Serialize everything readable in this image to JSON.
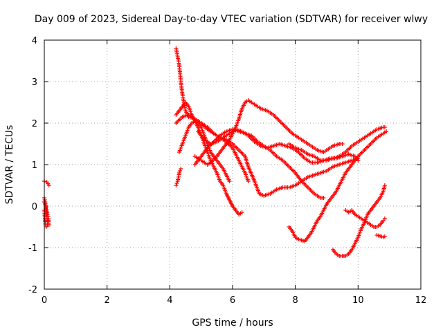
{
  "chart_data": {
    "type": "scatter",
    "title": "Day 009 of 2023, Sidereal Day-to-day VTEC variation (SDTVAR) for receiver wlwy",
    "xlabel": "GPS time / hours",
    "ylabel": "SDTVAR / TECUs",
    "xlim": [
      0,
      12
    ],
    "ylim": [
      -2,
      4
    ],
    "xticks": [
      0,
      2,
      4,
      6,
      8,
      10,
      12
    ],
    "yticks": [
      -2,
      -1,
      0,
      1,
      2,
      3,
      4
    ],
    "grid": true,
    "marker": "plus",
    "color": "#ff0000",
    "series": [
      {
        "points": [
          [
            0.0,
            0.6
          ],
          [
            0.08,
            0.58
          ],
          [
            0.15,
            0.5
          ]
        ]
      },
      {
        "points": [
          [
            0.0,
            0.2
          ],
          [
            0.03,
            0.1
          ],
          [
            0.05,
            -0.1
          ],
          [
            0.08,
            -0.25
          ],
          [
            0.1,
            -0.35
          ],
          [
            0.13,
            -0.3
          ],
          [
            0.15,
            -0.45
          ]
        ]
      },
      {
        "points": [
          [
            0.0,
            -0.1
          ],
          [
            0.02,
            -0.3
          ],
          [
            0.04,
            -0.45
          ],
          [
            0.06,
            -0.5
          ],
          [
            0.1,
            -0.45
          ]
        ]
      },
      {
        "points": [
          [
            0.0,
            0.1
          ],
          [
            0.05,
            0.0
          ],
          [
            0.1,
            -0.2
          ],
          [
            0.12,
            -0.25
          ]
        ]
      },
      {
        "points": [
          [
            4.2,
            3.8
          ],
          [
            4.25,
            3.6
          ],
          [
            4.3,
            3.4
          ],
          [
            4.35,
            3.0
          ],
          [
            4.4,
            2.7
          ],
          [
            4.45,
            2.5
          ],
          [
            4.5,
            2.3
          ],
          [
            4.6,
            2.15
          ],
          [
            4.8,
            2.1
          ],
          [
            5.0,
            2.0
          ],
          [
            5.2,
            1.85
          ],
          [
            5.4,
            1.75
          ],
          [
            5.6,
            1.65
          ],
          [
            5.8,
            1.6
          ],
          [
            6.0,
            1.5
          ],
          [
            6.2,
            1.35
          ],
          [
            6.4,
            1.2
          ],
          [
            6.5,
            0.95
          ],
          [
            6.7,
            0.6
          ],
          [
            6.85,
            0.3
          ],
          [
            7.0,
            0.25
          ],
          [
            7.2,
            0.3
          ],
          [
            7.4,
            0.4
          ],
          [
            7.6,
            0.45
          ],
          [
            7.8,
            0.45
          ],
          [
            8.0,
            0.5
          ],
          [
            8.2,
            0.6
          ],
          [
            8.4,
            0.7
          ],
          [
            8.6,
            0.75
          ],
          [
            8.8,
            0.8
          ],
          [
            9.0,
            0.85
          ],
          [
            9.2,
            0.95
          ],
          [
            9.4,
            1.0
          ],
          [
            9.6,
            1.05
          ],
          [
            9.8,
            1.1
          ],
          [
            10.0,
            1.15
          ]
        ]
      },
      {
        "points": [
          [
            4.2,
            2.2
          ],
          [
            4.3,
            2.3
          ],
          [
            4.4,
            2.4
          ],
          [
            4.5,
            2.5
          ],
          [
            4.6,
            2.4
          ],
          [
            4.7,
            2.2
          ],
          [
            4.8,
            2.05
          ],
          [
            4.9,
            1.9
          ],
          [
            5.0,
            1.7
          ],
          [
            5.1,
            1.5
          ],
          [
            5.2,
            1.3
          ],
          [
            5.3,
            1.1
          ],
          [
            5.4,
            0.95
          ],
          [
            5.5,
            0.8
          ],
          [
            5.6,
            0.6
          ],
          [
            5.7,
            0.5
          ],
          [
            5.8,
            0.3
          ],
          [
            6.0,
            0.0
          ],
          [
            6.1,
            -0.1
          ],
          [
            6.2,
            -0.2
          ],
          [
            6.3,
            -0.15
          ]
        ]
      },
      {
        "points": [
          [
            4.2,
            0.5
          ],
          [
            4.25,
            0.6
          ],
          [
            4.3,
            0.8
          ],
          [
            4.35,
            0.9
          ]
        ]
      },
      {
        "points": [
          [
            4.3,
            1.3
          ],
          [
            4.4,
            1.5
          ],
          [
            4.5,
            1.7
          ],
          [
            4.6,
            1.9
          ],
          [
            4.7,
            2.0
          ],
          [
            4.8,
            2.05
          ],
          [
            4.9,
            2.0
          ],
          [
            5.0,
            1.9
          ],
          [
            5.1,
            1.7
          ],
          [
            5.2,
            1.5
          ],
          [
            5.3,
            1.3
          ],
          [
            5.4,
            1.2
          ],
          [
            5.5,
            1.1
          ],
          [
            5.6,
            1.0
          ],
          [
            5.7,
            0.9
          ],
          [
            5.8,
            0.75
          ],
          [
            5.9,
            0.6
          ]
        ]
      },
      {
        "points": [
          [
            4.2,
            2.0
          ],
          [
            4.4,
            2.15
          ],
          [
            4.6,
            2.2
          ],
          [
            4.8,
            2.1
          ],
          [
            5.0,
            2.0
          ],
          [
            5.2,
            1.9
          ],
          [
            5.4,
            1.75
          ],
          [
            5.6,
            1.65
          ],
          [
            5.8,
            1.55
          ],
          [
            6.0,
            1.4
          ],
          [
            6.1,
            1.25
          ],
          [
            6.2,
            1.1
          ],
          [
            6.3,
            0.95
          ],
          [
            6.4,
            0.8
          ],
          [
            6.5,
            0.6
          ]
        ]
      },
      {
        "points": [
          [
            4.8,
            1.0
          ],
          [
            5.0,
            1.2
          ],
          [
            5.2,
            1.4
          ],
          [
            5.4,
            1.55
          ],
          [
            5.6,
            1.7
          ],
          [
            5.8,
            1.8
          ],
          [
            6.0,
            1.85
          ],
          [
            6.2,
            1.8
          ],
          [
            6.4,
            1.75
          ],
          [
            6.6,
            1.7
          ],
          [
            6.8,
            1.55
          ],
          [
            7.0,
            1.45
          ],
          [
            7.2,
            1.35
          ],
          [
            7.4,
            1.2
          ],
          [
            7.6,
            1.1
          ],
          [
            7.8,
            0.95
          ],
          [
            8.0,
            0.8
          ],
          [
            8.2,
            0.6
          ],
          [
            8.4,
            0.45
          ],
          [
            8.6,
            0.3
          ],
          [
            8.8,
            0.2
          ],
          [
            8.9,
            0.2
          ]
        ]
      },
      {
        "points": [
          [
            4.8,
            1.2
          ],
          [
            5.0,
            1.1
          ],
          [
            5.2,
            1.0
          ],
          [
            5.3,
            1.05
          ],
          [
            5.5,
            1.2
          ],
          [
            5.7,
            1.4
          ],
          [
            5.9,
            1.6
          ],
          [
            6.0,
            1.75
          ],
          [
            6.1,
            1.9
          ],
          [
            6.2,
            2.1
          ],
          [
            6.3,
            2.35
          ],
          [
            6.4,
            2.5
          ],
          [
            6.5,
            2.55
          ],
          [
            6.7,
            2.45
          ],
          [
            6.9,
            2.35
          ],
          [
            7.1,
            2.3
          ],
          [
            7.3,
            2.2
          ],
          [
            7.5,
            2.05
          ],
          [
            7.7,
            1.9
          ],
          [
            7.9,
            1.75
          ],
          [
            8.1,
            1.65
          ],
          [
            8.3,
            1.55
          ],
          [
            8.5,
            1.45
          ],
          [
            8.7,
            1.35
          ],
          [
            8.9,
            1.3
          ],
          [
            9.0,
            1.35
          ],
          [
            9.2,
            1.45
          ],
          [
            9.4,
            1.5
          ],
          [
            9.5,
            1.5
          ]
        ]
      },
      {
        "points": [
          [
            4.9,
            1.8
          ],
          [
            5.1,
            1.6
          ],
          [
            5.3,
            1.5
          ],
          [
            5.5,
            1.55
          ],
          [
            5.7,
            1.65
          ],
          [
            5.9,
            1.75
          ],
          [
            6.1,
            1.85
          ],
          [
            6.3,
            1.8
          ],
          [
            6.5,
            1.7
          ],
          [
            6.7,
            1.55
          ],
          [
            6.9,
            1.45
          ],
          [
            7.1,
            1.4
          ],
          [
            7.3,
            1.45
          ],
          [
            7.5,
            1.5
          ],
          [
            7.7,
            1.45
          ],
          [
            7.9,
            1.4
          ],
          [
            8.1,
            1.3
          ],
          [
            8.3,
            1.15
          ],
          [
            8.5,
            1.05
          ],
          [
            8.7,
            1.05
          ],
          [
            8.9,
            1.1
          ],
          [
            9.1,
            1.15
          ],
          [
            9.3,
            1.15
          ],
          [
            9.5,
            1.2
          ],
          [
            9.7,
            1.25
          ],
          [
            9.9,
            1.2
          ],
          [
            10.0,
            1.1
          ]
        ]
      },
      {
        "points": [
          [
            7.8,
            1.5
          ],
          [
            8.0,
            1.4
          ],
          [
            8.2,
            1.35
          ],
          [
            8.4,
            1.25
          ],
          [
            8.6,
            1.2
          ],
          [
            8.8,
            1.1
          ],
          [
            9.0,
            1.1
          ],
          [
            9.2,
            1.15
          ],
          [
            9.4,
            1.2
          ],
          [
            9.6,
            1.3
          ],
          [
            9.8,
            1.45
          ],
          [
            10.0,
            1.55
          ],
          [
            10.2,
            1.65
          ],
          [
            10.4,
            1.75
          ],
          [
            10.6,
            1.85
          ],
          [
            10.8,
            1.9
          ],
          [
            10.85,
            1.9
          ]
        ]
      },
      {
        "points": [
          [
            7.8,
            -0.5
          ],
          [
            7.9,
            -0.6
          ],
          [
            8.0,
            -0.75
          ],
          [
            8.1,
            -0.8
          ],
          [
            8.2,
            -0.82
          ],
          [
            8.3,
            -0.85
          ],
          [
            8.4,
            -0.75
          ],
          [
            8.5,
            -0.65
          ],
          [
            8.6,
            -0.5
          ],
          [
            8.7,
            -0.35
          ],
          [
            8.8,
            -0.25
          ],
          [
            8.9,
            -0.1
          ],
          [
            9.0,
            0.05
          ],
          [
            9.1,
            0.15
          ],
          [
            9.2,
            0.25
          ],
          [
            9.3,
            0.35
          ],
          [
            9.4,
            0.5
          ],
          [
            9.5,
            0.65
          ],
          [
            9.6,
            0.8
          ],
          [
            9.7,
            0.9
          ],
          [
            9.8,
            1.0
          ],
          [
            9.9,
            1.1
          ],
          [
            10.0,
            1.2
          ],
          [
            10.2,
            1.35
          ],
          [
            10.4,
            1.5
          ],
          [
            10.6,
            1.65
          ],
          [
            10.8,
            1.75
          ],
          [
            10.9,
            1.8
          ]
        ]
      },
      {
        "points": [
          [
            9.2,
            -1.05
          ],
          [
            9.3,
            -1.15
          ],
          [
            9.4,
            -1.2
          ],
          [
            9.5,
            -1.2
          ],
          [
            9.6,
            -1.2
          ],
          [
            9.7,
            -1.15
          ],
          [
            9.8,
            -1.05
          ],
          [
            9.9,
            -0.9
          ],
          [
            10.0,
            -0.75
          ],
          [
            10.1,
            -0.55
          ],
          [
            10.2,
            -0.4
          ],
          [
            10.3,
            -0.2
          ],
          [
            10.4,
            -0.1
          ],
          [
            10.5,
            0.0
          ],
          [
            10.6,
            0.1
          ],
          [
            10.7,
            0.2
          ],
          [
            10.8,
            0.35
          ],
          [
            10.85,
            0.5
          ]
        ]
      },
      {
        "points": [
          [
            9.6,
            -0.1
          ],
          [
            9.7,
            -0.15
          ],
          [
            9.8,
            -0.1
          ],
          [
            9.9,
            -0.2
          ],
          [
            10.0,
            -0.25
          ],
          [
            10.1,
            -0.3
          ],
          [
            10.2,
            -0.35
          ],
          [
            10.3,
            -0.4
          ],
          [
            10.4,
            -0.45
          ],
          [
            10.5,
            -0.5
          ],
          [
            10.6,
            -0.5
          ],
          [
            10.7,
            -0.45
          ],
          [
            10.8,
            -0.35
          ],
          [
            10.85,
            -0.3
          ]
        ]
      },
      {
        "points": [
          [
            10.6,
            -0.7
          ],
          [
            10.7,
            -0.72
          ],
          [
            10.8,
            -0.75
          ],
          [
            10.85,
            -0.73
          ]
        ]
      }
    ]
  }
}
